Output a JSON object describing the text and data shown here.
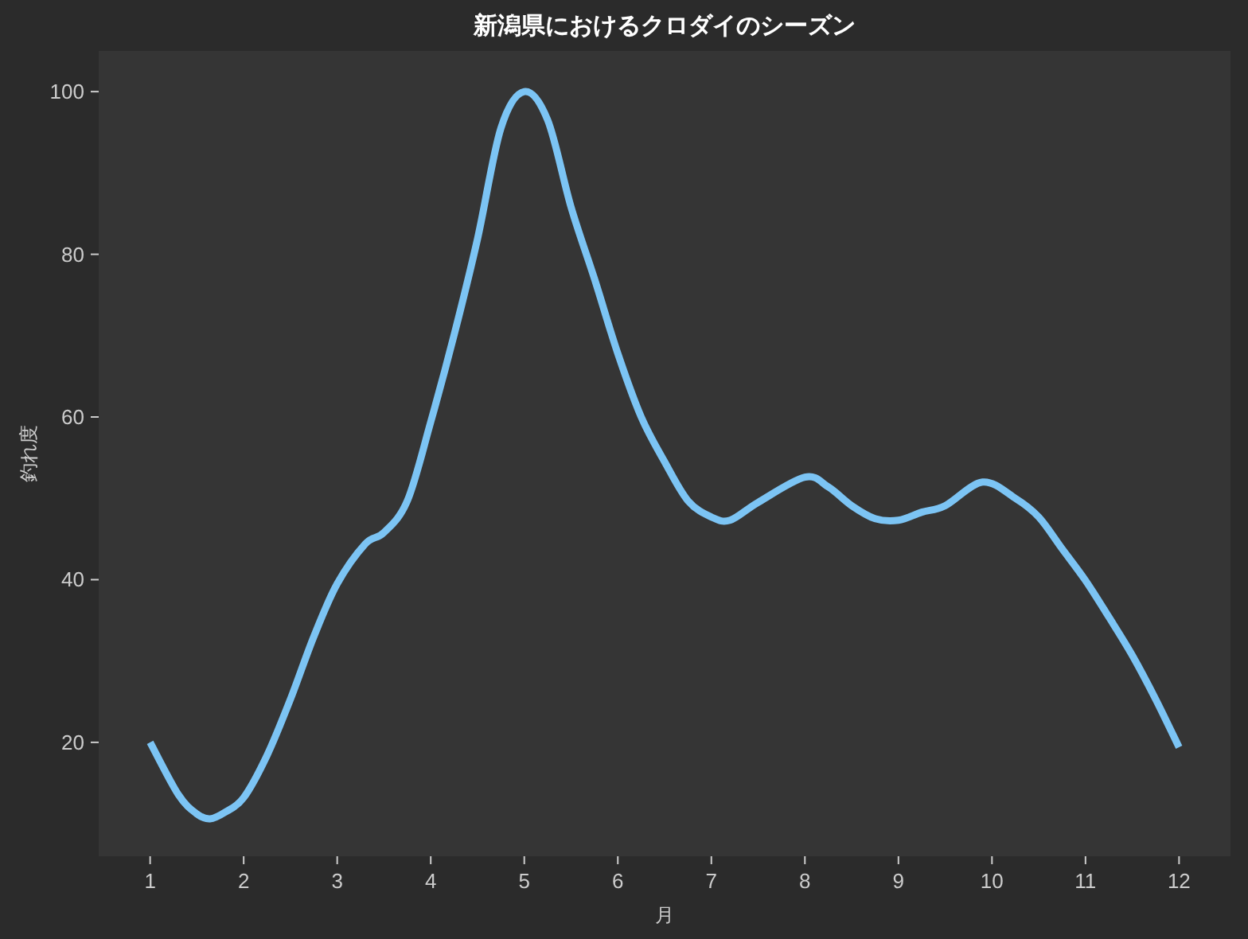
{
  "chart_data": {
    "type": "line",
    "title": "新潟県におけるクロダイのシーズン",
    "xlabel": "月",
    "ylabel": "釣れ度",
    "x": [
      1,
      1.3,
      1.5,
      1.64,
      1.8,
      2,
      2.25,
      2.5,
      2.75,
      3,
      3.3,
      3.5,
      3.75,
      4,
      4.25,
      4.5,
      4.75,
      5,
      5.25,
      5.5,
      5.75,
      6,
      6.25,
      6.5,
      6.75,
      7,
      7.2,
      7.5,
      8,
      8.25,
      8.5,
      8.75,
      9,
      9.25,
      9.5,
      9.9,
      10.25,
      10.5,
      10.75,
      11,
      11.25,
      11.5,
      11.75,
      12
    ],
    "series": [
      {
        "color": "#7cc4f4",
        "values": [
          20,
          13.6,
          11.2,
          10.6,
          11.4,
          13.2,
          18.4,
          25.3,
          33,
          39.5,
          44.4,
          45.8,
          49.7,
          59.4,
          70.1,
          81.9,
          95.5,
          100,
          96.5,
          85.8,
          77,
          67.8,
          60,
          54.5,
          49.7,
          47.7,
          47.3,
          49.5,
          52.6,
          51.4,
          49.1,
          47.5,
          47.3,
          48.3,
          49.1,
          52,
          50,
          47.7,
          43.8,
          39.9,
          35.4,
          30.7,
          25.3,
          19.4
        ]
      }
    ],
    "xlim": [
      0.45,
      12.55
    ],
    "xticks": [
      1,
      2,
      3,
      4,
      5,
      6,
      7,
      8,
      9,
      10,
      11,
      12
    ],
    "ylim": [
      6,
      105
    ],
    "yticks": [
      20,
      40,
      60,
      80,
      100
    ],
    "grid": false,
    "marker": "none",
    "line_style": "solid"
  }
}
